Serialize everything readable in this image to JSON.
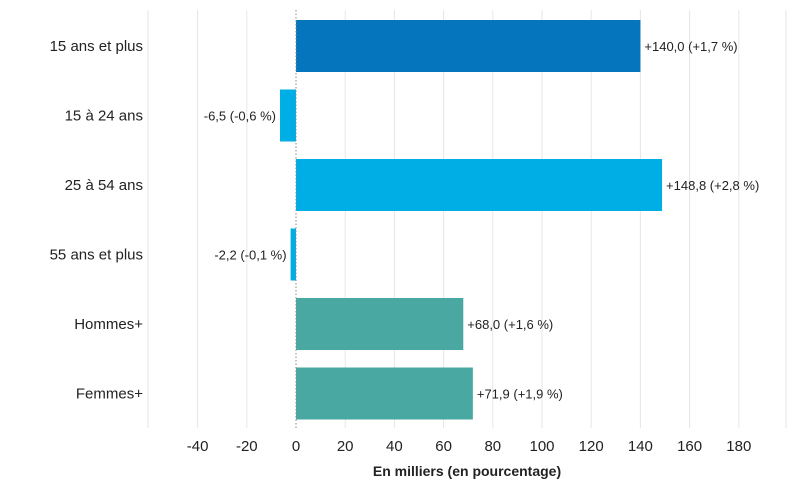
{
  "chart_data": {
    "type": "bar",
    "orientation": "horizontal",
    "categories": [
      "15 ans et plus",
      "15 à 24 ans",
      "25 à 54 ans",
      "55 ans et plus",
      "Hommes+",
      "Femmes+"
    ],
    "values": [
      140.0,
      -6.5,
      148.8,
      -2.2,
      68.0,
      71.9
    ],
    "data_labels": [
      "+140,0 (+1,7 %)",
      "-6,5 (-0,6 %)",
      "+148,8 (+2,8 %)",
      "-2,2 (-0,1 %)",
      "+68,0 (+1,6 %)",
      "+71,9 (+1,9 %)"
    ],
    "colors": [
      "#0575bd",
      "#00aee6",
      "#00aee6",
      "#00aee6",
      "#4aa8a2",
      "#4aa8a2"
    ],
    "xticks": [
      -40,
      -20,
      0,
      20,
      40,
      60,
      80,
      100,
      120,
      140,
      160,
      180
    ],
    "xtick_labels": [
      "-40",
      "-20",
      "0",
      "20",
      "40",
      "60",
      "80",
      "100",
      "120",
      "140",
      "160",
      "180"
    ],
    "xlim": [
      -60,
      200
    ],
    "xlabel": "En milliers (en pourcentage)",
    "title": "",
    "grid": true,
    "zero_line": "dotted"
  }
}
